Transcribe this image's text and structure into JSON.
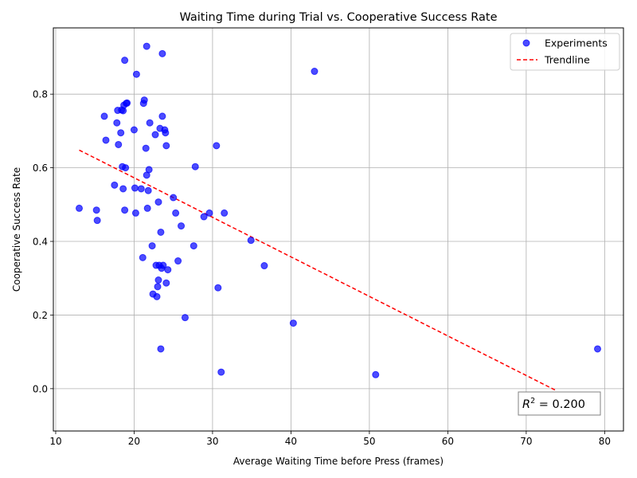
{
  "chart_data": {
    "type": "scatter",
    "title": "Waiting Time during Trial vs. Cooperative Success Rate",
    "xlabel": "Average Waiting Time before Press (frames)",
    "ylabel": "Cooperative Success Rate",
    "xlim": [
      9.7,
      82.4
    ],
    "ylim": [
      -0.115,
      0.98
    ],
    "xticks": [
      10,
      20,
      30,
      40,
      50,
      60,
      70,
      80
    ],
    "yticks": [
      0.0,
      0.2,
      0.4,
      0.6,
      0.8
    ],
    "ytick_labels": [
      "0.0",
      "0.2",
      "0.4",
      "0.6",
      "0.8"
    ],
    "grid": true,
    "legend_position": "top-right",
    "colors": {
      "points": "#0000ff",
      "trendline": "#ff0000"
    },
    "series": [
      {
        "name": "Experiments",
        "kind": "scatter",
        "points": [
          [
            13.0,
            0.49
          ],
          [
            15.2,
            0.485
          ],
          [
            15.3,
            0.457
          ],
          [
            16.2,
            0.74
          ],
          [
            16.4,
            0.675
          ],
          [
            17.5,
            0.553
          ],
          [
            17.8,
            0.722
          ],
          [
            17.9,
            0.756
          ],
          [
            18.0,
            0.663
          ],
          [
            18.3,
            0.695
          ],
          [
            18.4,
            0.757
          ],
          [
            18.5,
            0.603
          ],
          [
            18.6,
            0.543
          ],
          [
            18.6,
            0.755
          ],
          [
            18.7,
            0.77
          ],
          [
            18.8,
            0.485
          ],
          [
            18.8,
            0.892
          ],
          [
            18.9,
            0.6
          ],
          [
            19.0,
            0.775
          ],
          [
            19.1,
            0.776
          ],
          [
            20.0,
            0.703
          ],
          [
            20.1,
            0.545
          ],
          [
            20.2,
            0.477
          ],
          [
            20.3,
            0.854
          ],
          [
            20.9,
            0.543
          ],
          [
            21.1,
            0.356
          ],
          [
            21.2,
            0.775
          ],
          [
            21.3,
            0.784
          ],
          [
            21.5,
            0.653
          ],
          [
            21.6,
            0.58
          ],
          [
            21.6,
            0.93
          ],
          [
            21.7,
            0.49
          ],
          [
            21.8,
            0.538
          ],
          [
            21.9,
            0.595
          ],
          [
            22.0,
            0.722
          ],
          [
            22.3,
            0.388
          ],
          [
            22.4,
            0.257
          ],
          [
            22.7,
            0.69
          ],
          [
            22.8,
            0.335
          ],
          [
            22.9,
            0.25
          ],
          [
            23.0,
            0.277
          ],
          [
            23.1,
            0.507
          ],
          [
            23.1,
            0.295
          ],
          [
            23.2,
            0.335
          ],
          [
            23.3,
            0.707
          ],
          [
            23.4,
            0.425
          ],
          [
            23.4,
            0.108
          ],
          [
            23.5,
            0.327
          ],
          [
            23.6,
            0.74
          ],
          [
            23.6,
            0.91
          ],
          [
            23.7,
            0.335
          ],
          [
            23.9,
            0.703
          ],
          [
            24.0,
            0.695
          ],
          [
            24.1,
            0.66
          ],
          [
            24.1,
            0.287
          ],
          [
            24.3,
            0.323
          ],
          [
            25.0,
            0.519
          ],
          [
            25.3,
            0.477
          ],
          [
            25.6,
            0.347
          ],
          [
            26.0,
            0.442
          ],
          [
            26.5,
            0.193
          ],
          [
            27.6,
            0.388
          ],
          [
            27.8,
            0.603
          ],
          [
            28.9,
            0.467
          ],
          [
            29.6,
            0.477
          ],
          [
            30.5,
            0.66
          ],
          [
            30.7,
            0.274
          ],
          [
            31.1,
            0.045
          ],
          [
            31.5,
            0.477
          ],
          [
            34.9,
            0.403
          ],
          [
            36.6,
            0.334
          ],
          [
            40.3,
            0.178
          ],
          [
            43.0,
            0.862
          ],
          [
            50.8,
            0.038
          ],
          [
            79.1,
            0.108
          ]
        ]
      },
      {
        "name": "Trendline",
        "kind": "line",
        "x": [
          13.0,
          73.8
        ],
        "y": [
          0.648,
          -0.005
        ]
      }
    ],
    "annotations": {
      "r2_prefix": "R",
      "r2_exponent": "2",
      "r2_suffix": " = 0.200"
    }
  }
}
